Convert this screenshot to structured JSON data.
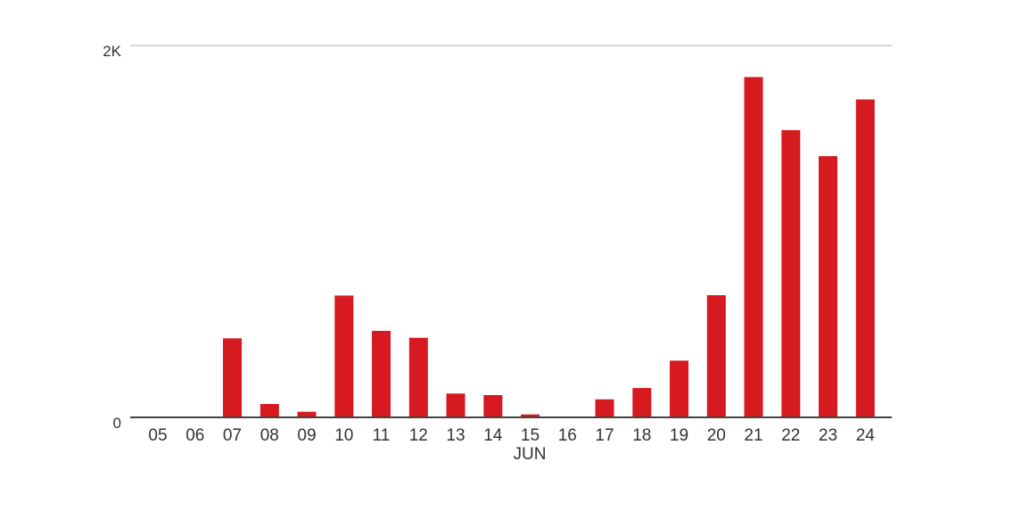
{
  "chart_data": {
    "type": "bar",
    "categories": [
      "05",
      "06",
      "07",
      "08",
      "09",
      "10",
      "11",
      "12",
      "13",
      "14",
      "15",
      "16",
      "17",
      "18",
      "19",
      "20",
      "21",
      "22",
      "23",
      "24"
    ],
    "values": [
      0,
      0,
      425,
      72,
      30,
      655,
      465,
      428,
      128,
      120,
      16,
      5,
      97,
      158,
      305,
      657,
      1830,
      1545,
      1405,
      1710
    ],
    "month_label": "JUN",
    "y_ticks": [
      {
        "value": 0,
        "label": "0"
      },
      {
        "value": 2000,
        "label": "2K"
      }
    ],
    "ylim": [
      0,
      2000
    ],
    "bar_color": "#d71920",
    "grid": true
  }
}
